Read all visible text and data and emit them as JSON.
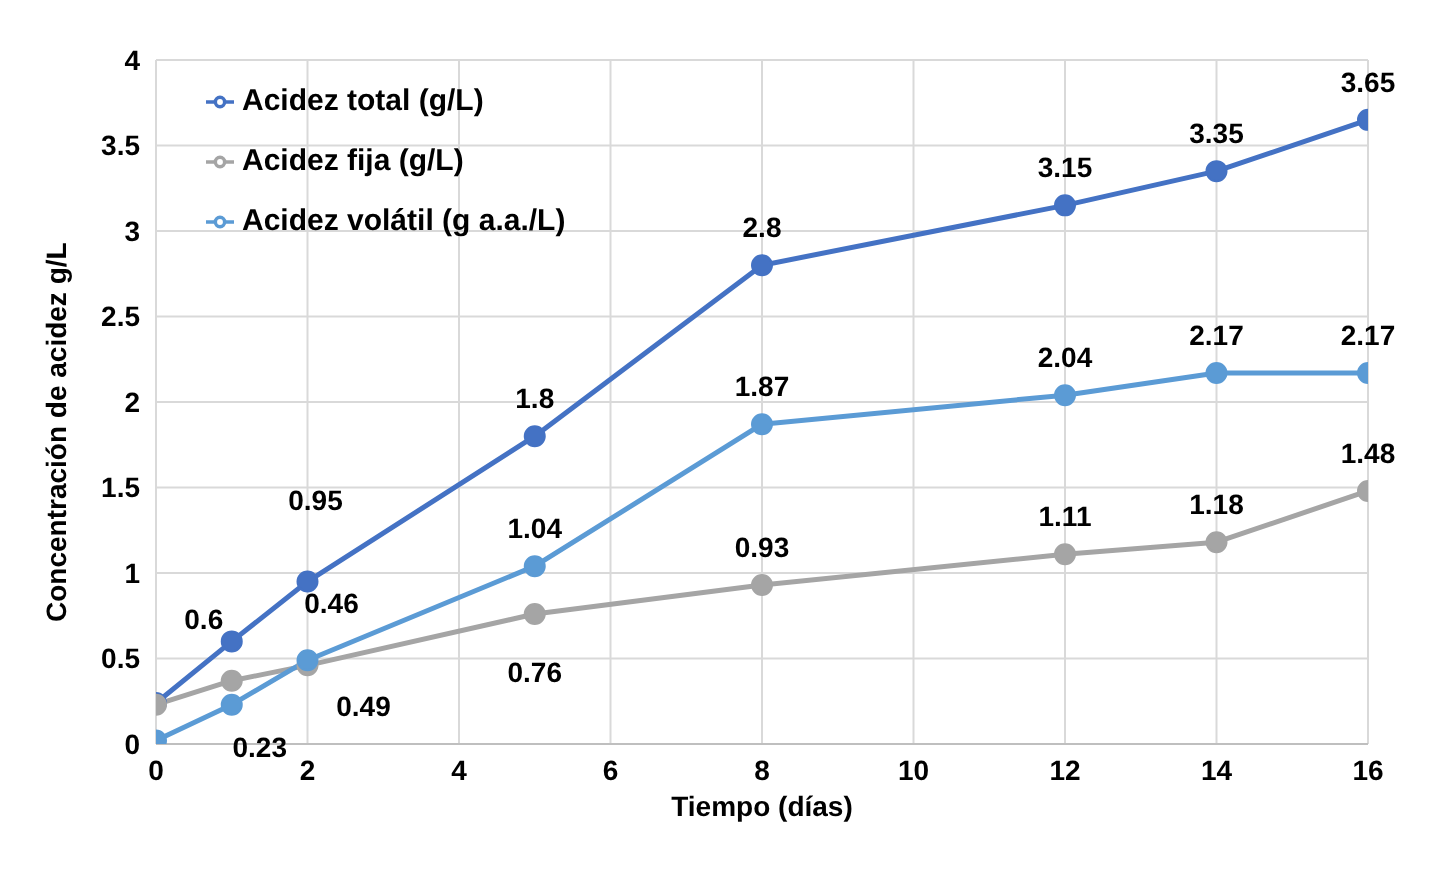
{
  "chart_data": {
    "type": "line",
    "xlabel": "Tiempo (días)",
    "ylabel": "Concentración de acidez g/L",
    "x": [
      0,
      1,
      2,
      5,
      8,
      12,
      14,
      16
    ],
    "series": [
      {
        "name": "Acidez total (g/L)",
        "color": "#4472c4",
        "values": [
          0.24,
          0.6,
          0.95,
          1.8,
          2.8,
          3.15,
          3.35,
          3.65
        ],
        "value_labels": [
          null,
          "0.6",
          "0.95",
          "1.8",
          "2.8",
          "3.15",
          "3.35",
          "3.65"
        ]
      },
      {
        "name": "Acidez fija (g/L)",
        "color": "#a5a5a5",
        "values": [
          0.23,
          0.37,
          0.46,
          0.76,
          0.93,
          1.11,
          1.18,
          1.48
        ],
        "value_labels": [
          null,
          null,
          "0.46",
          "0.76",
          "0.93",
          "1.11",
          "1.18",
          "1.48"
        ]
      },
      {
        "name": "Acidez volátil (g a.a./L)",
        "color": "#5b9bd5",
        "values": [
          0.02,
          0.23,
          0.49,
          1.04,
          1.87,
          2.04,
          2.17,
          2.17
        ],
        "value_labels": [
          null,
          "0.23",
          "0.49",
          "1.04",
          "1.87",
          "2.04",
          "2.17",
          "2.17"
        ]
      }
    ],
    "xlim": [
      0,
      16
    ],
    "xticks": [
      0,
      2,
      4,
      6,
      8,
      10,
      12,
      14,
      16
    ],
    "ylim": [
      0,
      4
    ],
    "yticks": [
      0,
      0.5,
      1,
      1.5,
      2,
      2.5,
      3,
      3.5,
      4
    ],
    "grid": true,
    "legend": "top left",
    "marker": "circle",
    "line_style": "solid"
  }
}
